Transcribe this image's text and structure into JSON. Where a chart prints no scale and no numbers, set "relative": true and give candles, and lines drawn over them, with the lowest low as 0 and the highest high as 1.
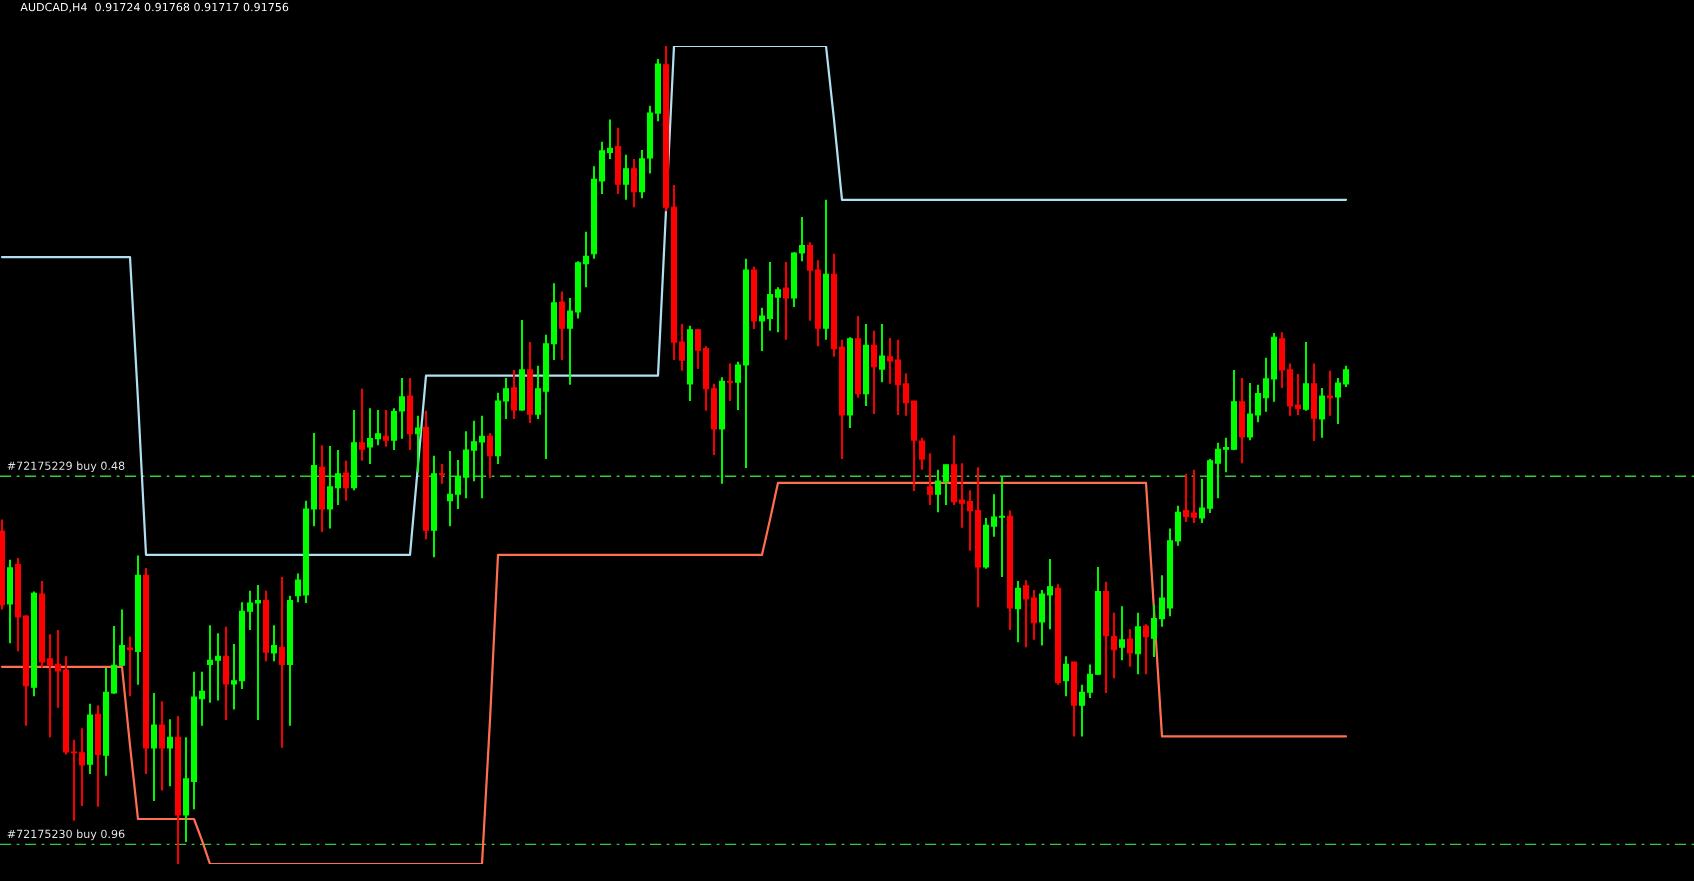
{
  "chart_data": {
    "type": "candlestick",
    "relative": true,
    "title": "AUDCAD,H4  0.91724 0.91768 0.91717 0.91756",
    "categories": [
      null,
      null,
      null,
      null,
      null,
      null,
      null,
      null,
      null,
      null,
      null,
      null,
      null,
      null,
      null,
      null,
      null,
      null,
      null,
      null,
      null,
      null,
      null,
      null,
      null,
      null,
      null,
      null,
      null,
      null,
      null,
      null,
      null,
      null,
      null,
      null,
      null,
      null,
      null,
      null,
      null,
      null,
      null,
      null,
      null,
      null,
      null,
      null,
      null,
      null,
      null,
      null,
      null,
      null,
      null,
      null,
      null,
      null,
      null,
      null,
      null,
      null,
      null,
      null,
      null,
      null,
      null,
      null,
      null,
      null,
      null,
      null,
      null,
      null,
      null,
      null,
      null,
      null,
      null,
      null,
      null,
      null,
      null,
      null,
      null,
      null,
      null,
      null,
      null,
      null,
      null,
      null,
      null,
      null,
      null,
      null,
      null,
      null,
      null,
      null,
      null,
      null,
      null,
      null,
      null,
      null,
      null,
      null,
      null,
      null,
      null,
      null,
      null,
      null,
      null,
      null,
      null,
      null,
      null,
      null,
      null,
      null,
      null,
      null,
      null,
      null,
      null,
      null,
      null,
      null,
      null,
      null,
      null,
      null,
      null,
      null,
      null,
      null,
      null,
      null,
      null,
      null,
      null,
      null,
      null,
      null,
      null,
      null,
      null,
      null,
      null,
      null,
      null,
      null,
      null,
      null,
      null,
      null,
      null,
      null,
      null,
      null,
      null,
      null,
      null,
      null,
      null,
      null,
      null
    ],
    "ohlc": [
      [
        0.407,
        0.421,
        0.311,
        0.317
      ],
      [
        0.318,
        0.372,
        0.27,
        0.362
      ],
      [
        0.366,
        0.374,
        0.26,
        0.302
      ],
      [
        0.303,
        0.304,
        0.169,
        0.218
      ],
      [
        0.216,
        0.333,
        0.205,
        0.331
      ],
      [
        0.33,
        0.346,
        0.24,
        0.247
      ],
      [
        0.251,
        0.281,
        0.155,
        0.243
      ],
      [
        0.244,
        0.286,
        0.191,
        0.236
      ],
      [
        0.237,
        0.254,
        0.134,
        0.137
      ],
      [
        0.137,
        0.152,
        0.053,
        0.136
      ],
      [
        0.136,
        0.166,
        0.071,
        0.121
      ],
      [
        0.122,
        0.196,
        0.11,
        0.182
      ],
      [
        0.183,
        0.194,
        0.07,
        0.134
      ],
      [
        0.133,
        0.24,
        0.108,
        0.21
      ],
      [
        0.209,
        0.291,
        0.208,
        0.243
      ],
      [
        0.243,
        0.311,
        0.242,
        0.267
      ],
      [
        0.264,
        0.278,
        0.205,
        0.262
      ],
      [
        0.26,
        0.377,
        0.219,
        0.353
      ],
      [
        0.353,
        0.362,
        0.11,
        0.142
      ],
      [
        0.142,
        0.209,
        0.077,
        0.17
      ],
      [
        0.17,
        0.199,
        0.09,
        0.142
      ],
      [
        0.142,
        0.177,
        0.095,
        0.155
      ],
      [
        0.155,
        0.181,
        0,
        0.06
      ],
      [
        0.06,
        0.155,
        0.027,
        0.104
      ],
      [
        0.101,
        0.235,
        0.067,
        0.204
      ],
      [
        0.202,
        0.235,
        0.169,
        0.211
      ],
      [
        0.244,
        0.292,
        0.197,
        0.249
      ],
      [
        0.249,
        0.282,
        0.2,
        0.254
      ],
      [
        0.254,
        0.29,
        0.176,
        0.22
      ],
      [
        0.22,
        0.269,
        0.189,
        0.224
      ],
      [
        0.224,
        0.32,
        0.214,
        0.309
      ],
      [
        0.309,
        0.334,
        0.286,
        0.319
      ],
      [
        0.319,
        0.341,
        0.176,
        0.322
      ],
      [
        0.322,
        0.334,
        0.248,
        0.259
      ],
      [
        0.258,
        0.292,
        0.248,
        0.267
      ],
      [
        0.265,
        0.351,
        0.142,
        0.244
      ],
      [
        0.244,
        0.328,
        0.169,
        0.322
      ],
      [
        0.328,
        0.355,
        0.32,
        0.347
      ],
      [
        0.329,
        0.444,
        0.319,
        0.434
      ],
      [
        0.434,
        0.527,
        0.413,
        0.487
      ],
      [
        0.485,
        0.512,
        0.406,
        0.434
      ],
      [
        0.434,
        0.511,
        0.41,
        0.461
      ],
      [
        0.46,
        0.506,
        0.439,
        0.477
      ],
      [
        0.478,
        0.493,
        0.444,
        0.46
      ],
      [
        0.46,
        0.555,
        0.457,
        0.515
      ],
      [
        0.515,
        0.581,
        0.493,
        0.507
      ],
      [
        0.51,
        0.557,
        0.489,
        0.52
      ],
      [
        0.52,
        0.555,
        0.512,
        0.526
      ],
      [
        0.523,
        0.555,
        0.51,
        0.518
      ],
      [
        0.518,
        0.557,
        0.506,
        0.553
      ],
      [
        0.554,
        0.594,
        0.52,
        0.571
      ],
      [
        0.572,
        0.594,
        0.506,
        0.526
      ],
      [
        0.526,
        0.548,
        0.479,
        0.533
      ],
      [
        0.534,
        0.554,
        0.397,
        0.408
      ],
      [
        0.408,
        0.499,
        0.375,
        0.477
      ],
      [
        0.477,
        0.489,
        0.465,
        0.476
      ],
      [
        0.444,
        0.505,
        0.413,
        0.452
      ],
      [
        0.452,
        0.494,
        0.434,
        0.473
      ],
      [
        0.473,
        0.529,
        0.447,
        0.506
      ],
      [
        0.506,
        0.542,
        0.468,
        0.516
      ],
      [
        0.516,
        0.548,
        0.447,
        0.523
      ],
      [
        0.523,
        0.527,
        0.472,
        0.499
      ],
      [
        0.499,
        0.576,
        0.489,
        0.566
      ],
      [
        0.566,
        0.594,
        0.544,
        0.581
      ],
      [
        0.582,
        0.604,
        0.544,
        0.555
      ],
      [
        0.555,
        0.665,
        0.554,
        0.604
      ],
      [
        0.604,
        0.638,
        0.539,
        0.55
      ],
      [
        0.55,
        0.609,
        0.544,
        0.581
      ],
      [
        0.578,
        0.647,
        0.495,
        0.636
      ],
      [
        0.636,
        0.71,
        0.616,
        0.686
      ],
      [
        0.687,
        0.7,
        0.616,
        0.655
      ],
      [
        0.655,
        0.692,
        0.586,
        0.676
      ],
      [
        0.675,
        0.737,
        0.667,
        0.735
      ],
      [
        0.734,
        0.773,
        0.705,
        0.743
      ],
      [
        0.746,
        0.853,
        0.74,
        0.837
      ],
      [
        0.835,
        0.883,
        0.819,
        0.872
      ],
      [
        0.87,
        0.91,
        0.862,
        0.875
      ],
      [
        0.877,
        0.9,
        0.819,
        0.831
      ],
      [
        0.831,
        0.867,
        0.812,
        0.85
      ],
      [
        0.85,
        0.862,
        0.803,
        0.822
      ],
      [
        0.822,
        0.873,
        0.814,
        0.862
      ],
      [
        0.863,
        0.927,
        0.844,
        0.918
      ],
      [
        0.918,
        0.984,
        0.908,
        0.978
      ],
      [
        0.977,
        1,
        0.798,
        0.803
      ],
      [
        0.803,
        0.83,
        0.616,
        0.638
      ],
      [
        0.638,
        0.66,
        0.603,
        0.616
      ],
      [
        0.587,
        0.658,
        0.566,
        0.653
      ],
      [
        0.653,
        0.654,
        0.605,
        0.628
      ],
      [
        0.63,
        0.633,
        0.554,
        0.581
      ],
      [
        0.581,
        0.587,
        0.5,
        0.532
      ],
      [
        0.532,
        0.595,
        0.465,
        0.59
      ],
      [
        0.59,
        0.612,
        0.566,
        0.589
      ],
      [
        0.589,
        0.614,
        0.555,
        0.61
      ],
      [
        0.61,
        0.74,
        0.484,
        0.726
      ],
      [
        0.726,
        0.73,
        0.654,
        0.664
      ],
      [
        0.664,
        0.68,
        0.627,
        0.67
      ],
      [
        0.667,
        0.736,
        0.652,
        0.696
      ],
      [
        0.693,
        0.705,
        0.65,
        0.702
      ],
      [
        0.704,
        0.736,
        0.641,
        0.692
      ],
      [
        0.692,
        0.748,
        0.681,
        0.747
      ],
      [
        0.747,
        0.791,
        0.737,
        0.756
      ],
      [
        0.756,
        0.76,
        0.664,
        0.726
      ],
      [
        0.726,
        0.738,
        0.633,
        0.655
      ],
      [
        0.655,
        0.812,
        0.641,
        0.721
      ],
      [
        0.721,
        0.746,
        0.62,
        0.63
      ],
      [
        0.632,
        0.641,
        0.495,
        0.549
      ],
      [
        0.549,
        0.644,
        0.533,
        0.642
      ],
      [
        0.642,
        0.67,
        0.57,
        0.575
      ],
      [
        0.575,
        0.66,
        0.56,
        0.634
      ],
      [
        0.634,
        0.652,
        0.55,
        0.608
      ],
      [
        0.605,
        0.66,
        0.589,
        0.621
      ],
      [
        0.62,
        0.643,
        0.587,
        0.615
      ],
      [
        0.616,
        0.641,
        0.549,
        0.586
      ],
      [
        0.587,
        0.6,
        0.548,
        0.564
      ],
      [
        0.566,
        0.566,
        0.456,
        0.518
      ],
      [
        0.517,
        0.521,
        0.482,
        0.495
      ],
      [
        0.461,
        0.502,
        0.439,
        0.452
      ],
      [
        0.452,
        0.482,
        0.43,
        0.468
      ],
      [
        0.468,
        0.488,
        0.439,
        0.488
      ],
      [
        0.488,
        0.524,
        0.439,
        0.443
      ],
      [
        0.445,
        0.49,
        0.411,
        0.441
      ],
      [
        0.443,
        0.457,
        0.383,
        0.432
      ],
      [
        0.432,
        0.485,
        0.314,
        0.363
      ],
      [
        0.363,
        0.423,
        0.361,
        0.414
      ],
      [
        0.413,
        0.452,
        0.4,
        0.424
      ],
      [
        0.424,
        0.473,
        0.351,
        0.425
      ],
      [
        0.425,
        0.432,
        0.286,
        0.313
      ],
      [
        0.312,
        0.346,
        0.271,
        0.337
      ],
      [
        0.34,
        0.347,
        0.265,
        0.324
      ],
      [
        0.325,
        0.335,
        0.274,
        0.295
      ],
      [
        0.296,
        0.335,
        0.267,
        0.33
      ],
      [
        0.329,
        0.373,
        0.287,
        0.339
      ],
      [
        0.337,
        0.342,
        0.219,
        0.222
      ],
      [
        0.224,
        0.254,
        0.205,
        0.244
      ],
      [
        0.247,
        0.247,
        0.156,
        0.194
      ],
      [
        0.194,
        0.219,
        0.156,
        0.21
      ],
      [
        0.21,
        0.244,
        0.203,
        0.232
      ],
      [
        0.232,
        0.363,
        0.231,
        0.333
      ],
      [
        0.333,
        0.345,
        0.209,
        0.279
      ],
      [
        0.278,
        0.307,
        0.227,
        0.262
      ],
      [
        0.265,
        0.315,
        0.249,
        0.274
      ],
      [
        0.275,
        0.287,
        0.241,
        0.258
      ],
      [
        0.257,
        0.307,
        0.232,
        0.29
      ],
      [
        0.291,
        0.293,
        0.232,
        0.278
      ],
      [
        0.276,
        0.317,
        0.253,
        0.3
      ],
      [
        0.3,
        0.353,
        0.29,
        0.325
      ],
      [
        0.313,
        0.41,
        0.303,
        0.395
      ],
      [
        0.395,
        0.438,
        0.389,
        0.43
      ],
      [
        0.432,
        0.477,
        0.418,
        0.425
      ],
      [
        0.429,
        0.482,
        0.417,
        0.424
      ],
      [
        0.423,
        0.471,
        0.417,
        0.435
      ],
      [
        0.435,
        0.495,
        0.429,
        0.493
      ],
      [
        0.49,
        0.515,
        0.447,
        0.507
      ],
      [
        0.507,
        0.521,
        0.479,
        0.509
      ],
      [
        0.507,
        0.604,
        0.506,
        0.565
      ],
      [
        0.565,
        0.594,
        0.49,
        0.522
      ],
      [
        0.522,
        0.588,
        0.518,
        0.55
      ],
      [
        0.549,
        0.586,
        0.54,
        0.575
      ],
      [
        0.57,
        0.619,
        0.553,
        0.593
      ],
      [
        0.593,
        0.649,
        0.565,
        0.644
      ],
      [
        0.642,
        0.65,
        0.582,
        0.604
      ],
      [
        0.604,
        0.612,
        0.548,
        0.56
      ],
      [
        0.561,
        0.599,
        0.549,
        0.557
      ],
      [
        0.556,
        0.638,
        0.554,
        0.587
      ],
      [
        0.587,
        0.612,
        0.517,
        0.545
      ],
      [
        0.544,
        0.582,
        0.521,
        0.572
      ],
      [
        0.572,
        0.603,
        0.548,
        0.57
      ],
      [
        0.571,
        0.594,
        0.538,
        0.588
      ],
      [
        0.587,
        0.609,
        0.583,
        0.604
      ]
    ],
    "colors": [
      "#ff0000",
      "#00ff00",
      "#ff0000",
      "#ff0000",
      "#00ff00",
      "#ff0000",
      "#ff0000",
      "#ff0000",
      "#ff0000",
      "#ff0000",
      "#ff0000",
      "#00ff00",
      "#ff0000",
      "#00ff00",
      "#00ff00",
      "#00ff00",
      "#ff0000",
      "#00ff00",
      "#ff0000",
      "#00ff00",
      "#ff0000",
      "#00ff00",
      "#ff0000",
      "#00ff00",
      "#00ff00",
      "#00ff00",
      "#00ff00",
      "#00ff00",
      "#ff0000",
      "#00ff00",
      "#00ff00",
      "#00ff00",
      "#00ff00",
      "#ff0000",
      "#00ff00",
      "#ff0000",
      "#00ff00",
      "#00ff00",
      "#00ff00",
      "#00ff00",
      "#ff0000",
      "#00ff00",
      "#00ff00",
      "#ff0000",
      "#00ff00",
      "#ff0000",
      "#00ff00",
      "#00ff00",
      "#ff0000",
      "#00ff00",
      "#00ff00",
      "#ff0000",
      "#00ff00",
      "#ff0000",
      "#00ff00",
      "#ff0000",
      "#00ff00",
      "#00ff00",
      "#00ff00",
      "#00ff00",
      "#00ff00",
      "#ff0000",
      "#00ff00",
      "#00ff00",
      "#ff0000",
      "#00ff00",
      "#ff0000",
      "#00ff00",
      "#00ff00",
      "#00ff00",
      "#ff0000",
      "#00ff00",
      "#00ff00",
      "#00ff00",
      "#00ff00",
      "#00ff00",
      "#00ff00",
      "#ff0000",
      "#00ff00",
      "#ff0000",
      "#00ff00",
      "#00ff00",
      "#00ff00",
      "#ff0000",
      "#ff0000",
      "#ff0000",
      "#00ff00",
      "#ff0000",
      "#ff0000",
      "#ff0000",
      "#00ff00",
      "#ff0000",
      "#00ff00",
      "#00ff00",
      "#ff0000",
      "#00ff00",
      "#00ff00",
      "#00ff00",
      "#ff0000",
      "#00ff00",
      "#00ff00",
      "#ff0000",
      "#ff0000",
      "#00ff00",
      "#ff0000",
      "#ff0000",
      "#00ff00",
      "#ff0000",
      "#00ff00",
      "#ff0000",
      "#00ff00",
      "#ff0000",
      "#ff0000",
      "#ff0000",
      "#ff0000",
      "#ff0000",
      "#ff0000",
      "#00ff00",
      "#00ff00",
      "#ff0000",
      "#ff0000",
      "#ff0000",
      "#ff0000",
      "#00ff00",
      "#00ff00",
      "#00ff00",
      "#ff0000",
      "#00ff00",
      "#ff0000",
      "#ff0000",
      "#00ff00",
      "#00ff00",
      "#ff0000",
      "#00ff00",
      "#ff0000",
      "#00ff00",
      "#00ff00",
      "#00ff00",
      "#ff0000",
      "#ff0000",
      "#00ff00",
      "#ff0000",
      "#00ff00",
      "#ff0000",
      "#00ff00",
      "#00ff00",
      "#00ff00",
      "#00ff00",
      "#ff0000",
      "#ff0000",
      "#00ff00",
      "#00ff00",
      "#00ff00",
      "#00ff00",
      "#00ff00",
      "#ff0000",
      "#00ff00",
      "#00ff00",
      "#00ff00",
      "#00ff00",
      "#ff0000",
      "#ff0000",
      "#ff0000",
      "#00ff00",
      "#ff0000",
      "#00ff00",
      "#ff0000",
      "#00ff00",
      "#00ff00"
    ],
    "series": [
      {
        "type": "line",
        "color": "#b0e0f0",
        "values": [
          0.742,
          0.742,
          0.742,
          0.742,
          0.742,
          0.742,
          0.742,
          0.742,
          0.742,
          0.742,
          0.742,
          0.742,
          0.742,
          0.742,
          0.742,
          0.742,
          0.742,
          0.567,
          0.378,
          0.378,
          0.378,
          0.378,
          0.378,
          0.378,
          0.378,
          0.378,
          0.378,
          0.378,
          0.378,
          0.378,
          0.378,
          0.378,
          0.378,
          0.378,
          0.378,
          0.378,
          0.378,
          0.378,
          0.378,
          0.378,
          0.378,
          0.378,
          0.378,
          0.378,
          0.378,
          0.378,
          0.378,
          0.378,
          0.378,
          0.378,
          0.378,
          0.378,
          null,
          0.597,
          0.597,
          0.597,
          0.597,
          0.597,
          0.597,
          0.597,
          0.597,
          0.597,
          0.597,
          0.597,
          0.597,
          0.597,
          0.597,
          0.597,
          0.597,
          0.597,
          0.597,
          0.597,
          0.597,
          0.597,
          0.597,
          0.597,
          0.597,
          0.597,
          0.597,
          0.597,
          0.597,
          0.597,
          0.597,
          null,
          1,
          1,
          1,
          1,
          1,
          1,
          1,
          1,
          1,
          1,
          1,
          1,
          1,
          1,
          1,
          1,
          1,
          1,
          1,
          1,
          0.91,
          0.812,
          0.812,
          0.812,
          0.812,
          0.812,
          0.812,
          0.812,
          0.812,
          0.812,
          0.812,
          0.812,
          0.812,
          0.812,
          0.812,
          0.812,
          0.812,
          0.812,
          0.812,
          0.812,
          0.812,
          0.812,
          0.812,
          0.812,
          0.812,
          0.812,
          0.812,
          0.812,
          0.812,
          0.812,
          0.812,
          0.812,
          0.812,
          0.812,
          0.812,
          0.812,
          0.812,
          0.812,
          0.812,
          0.812,
          0.812,
          0.812,
          0.812,
          0.812,
          0.812,
          0.812,
          0.812,
          0.812,
          0.812,
          0.812,
          0.812,
          0.812,
          0.812,
          0.812,
          0.812,
          0.812,
          0.812,
          0.812,
          0.812,
          0.812,
          0.812,
          0.812,
          0.812,
          0.812,
          0.812
        ]
      },
      {
        "type": "line",
        "color": "#ff6e50",
        "values": [
          0.241,
          0.241,
          0.241,
          0.241,
          0.241,
          0.241,
          0.241,
          0.241,
          0.241,
          0.241,
          0.241,
          0.241,
          0.241,
          0.241,
          0.241,
          0.241,
          0.145,
          0.055,
          0.055,
          0.055,
          0.055,
          0.055,
          0.055,
          0.055,
          0.055,
          0.029,
          0,
          0,
          0,
          0,
          0,
          0,
          0,
          0,
          0,
          0,
          0,
          0,
          0,
          0,
          0,
          0,
          0,
          0,
          0,
          0,
          0,
          0,
          0,
          0,
          0,
          0,
          0,
          0,
          0,
          0,
          0,
          0,
          0,
          0,
          0,
          0.176,
          0.378,
          0.378,
          0.378,
          0.378,
          0.378,
          0.378,
          0.378,
          0.378,
          0.378,
          0.378,
          0.378,
          0.378,
          0.378,
          0.378,
          0.378,
          0.378,
          0.378,
          0.378,
          0.378,
          0.378,
          0.378,
          0.378,
          0.378,
          0.378,
          0.378,
          0.378,
          0.378,
          0.378,
          0.378,
          0.378,
          0.378,
          0.378,
          0.378,
          0.378,
          0.421,
          0.466,
          0.466,
          0.466,
          0.466,
          0.466,
          0.466,
          0.466,
          0.466,
          0.466,
          0.466,
          0.466,
          0.466,
          0.466,
          0.466,
          0.466,
          0.466,
          0.466,
          0.466,
          0.466,
          0.466,
          0.466,
          0.466,
          0.466,
          0.466,
          0.466,
          0.466,
          0.466,
          0.466,
          0.466,
          0.466,
          0.466,
          0.466,
          0.466,
          0.466,
          0.466,
          0.466,
          0.466,
          0.466,
          0.466,
          0.466,
          0.466,
          0.466,
          0.466,
          0.466,
          0.466,
          0.466,
          0.466,
          null,
          0.156,
          0.156,
          0.156,
          0.156,
          0.156,
          0.156,
          0.156,
          0.156,
          0.156,
          0.156,
          0.156,
          0.156,
          0.156,
          0.156,
          0.156,
          0.156,
          0.156,
          0.156,
          0.156,
          0.156,
          0.156,
          0.156,
          0.156,
          0.156
        ]
      }
    ],
    "ref_lines": [
      {
        "axis": "y",
        "value": 0.474,
        "label": "#72175229 buy 0.48",
        "color": "#32cd32",
        "line_style": "dashed"
      },
      {
        "axis": "y",
        "value": 0.024,
        "label": "#72175230 buy 0.96",
        "color": "#32cd32",
        "line_style": "dashed"
      }
    ]
  }
}
